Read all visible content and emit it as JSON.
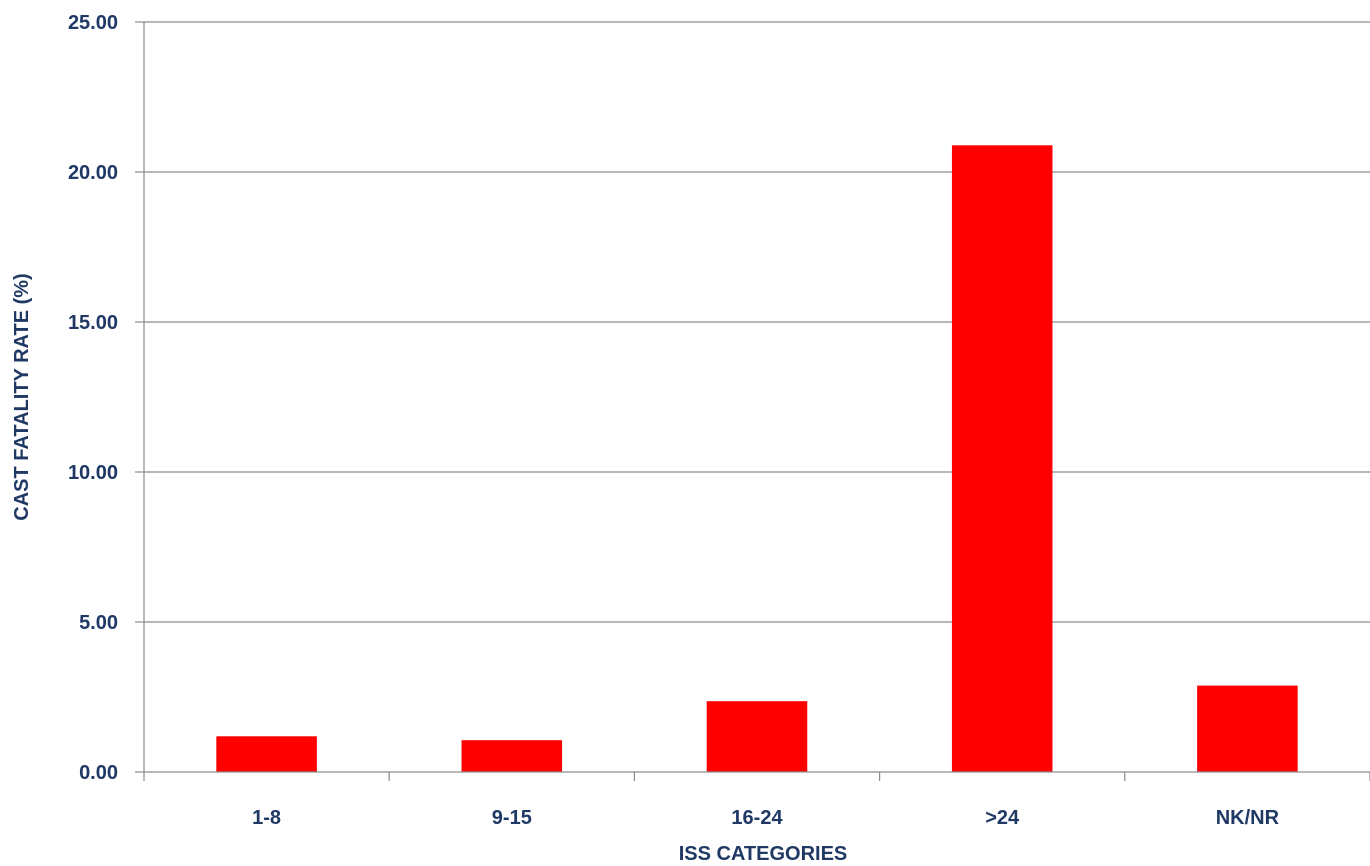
{
  "chart_data": {
    "type": "bar",
    "title": "",
    "xlabel": "ISS CATEGORIES",
    "ylabel": "CAST FATALITY RATE (%)",
    "categories": [
      "1-8",
      "9-15",
      "16-24",
      ">24",
      "NK/NR"
    ],
    "values": [
      1.19,
      1.06,
      2.36,
      20.89,
      2.88
    ],
    "ylim": [
      0,
      25
    ],
    "yticks": [
      "0.00",
      "5.00",
      "10.00",
      "15.00",
      "20.00",
      "25.00"
    ],
    "ytick_values": [
      0,
      5,
      10,
      15,
      20,
      25
    ],
    "grid": true,
    "legend": "none",
    "bar_color": "#ff0000",
    "text_color": "#1f3864",
    "grid_color": "#8c8c8c"
  }
}
